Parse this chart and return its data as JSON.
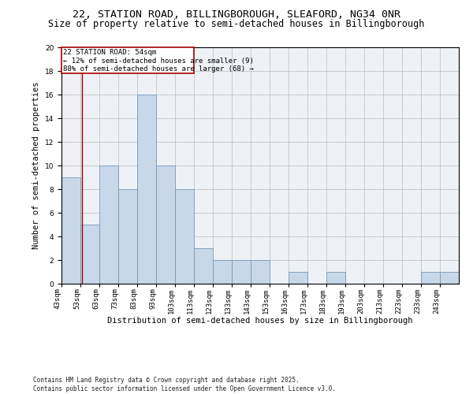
{
  "title": "22, STATION ROAD, BILLINGBOROUGH, SLEAFORD, NG34 0NR",
  "subtitle": "Size of property relative to semi-detached houses in Billingborough",
  "xlabel": "Distribution of semi-detached houses by size in Billingborough",
  "ylabel": "Number of semi-detached properties",
  "footnote1": "Contains HM Land Registry data © Crown copyright and database right 2025.",
  "footnote2": "Contains public sector information licensed under the Open Government Licence v3.0.",
  "bar_color": "#c8d8e8",
  "bar_edge_color": "#7799bb",
  "annotation_box_color": "#aa0000",
  "annotation_text_line1": "22 STATION ROAD: 54sqm",
  "annotation_text_line2": "← 12% of semi-detached houses are smaller (9)",
  "annotation_text_line3": "88% of semi-detached houses are larger (68) →",
  "vline_color": "#aa0000",
  "property_size": 54,
  "bin_edges": [
    43,
    53,
    63,
    73,
    83,
    93,
    103,
    113,
    123,
    133,
    143,
    153,
    163,
    173,
    183,
    193,
    203,
    213,
    223,
    233,
    243,
    253
  ],
  "counts": [
    9,
    5,
    10,
    8,
    16,
    10,
    8,
    3,
    2,
    2,
    2,
    0,
    1,
    0,
    1,
    0,
    0,
    0,
    0,
    1,
    1
  ],
  "ylim": [
    0,
    20
  ],
  "yticks": [
    0,
    2,
    4,
    6,
    8,
    10,
    12,
    14,
    16,
    18,
    20
  ],
  "background_color": "#eef2f7",
  "grid_color": "#bbbbbb",
  "title_fontsize": 9.5,
  "subtitle_fontsize": 8.5,
  "axis_label_fontsize": 7.5,
  "tick_fontsize": 6.5,
  "annotation_fontsize": 6.5,
  "footnote_fontsize": 5.5
}
